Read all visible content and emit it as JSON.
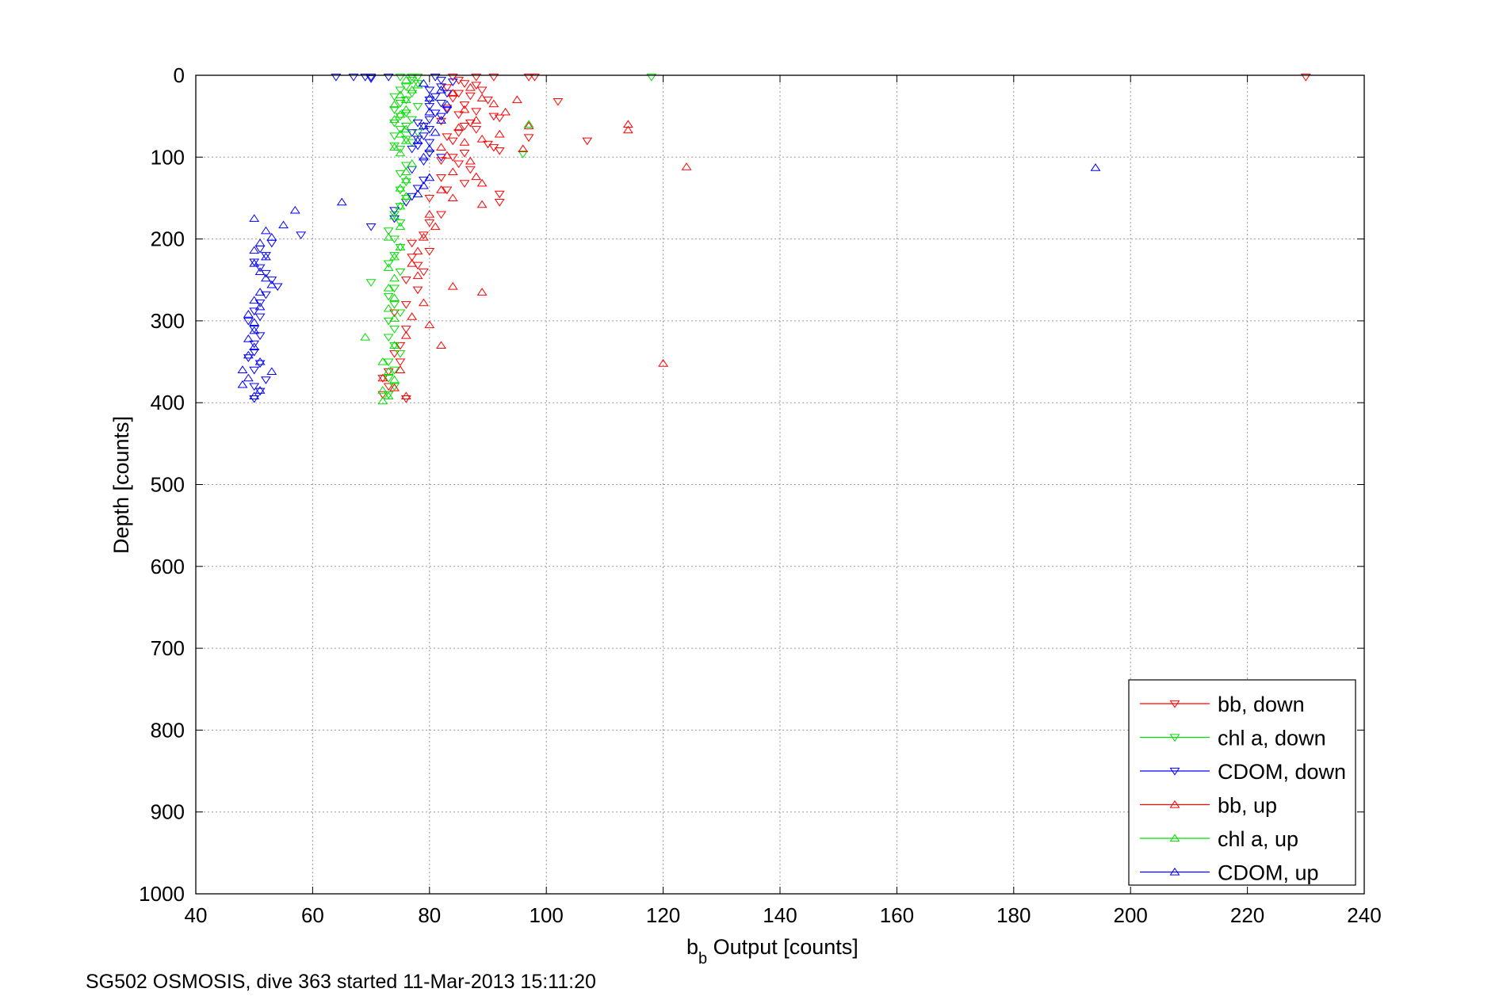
{
  "footer_text": "SG502 OSMOSIS, dive 363 started 11-Mar-2013 15:11:20",
  "chart_data": {
    "type": "scatter",
    "title": "",
    "xlabel_main": "b",
    "xlabel_sub": "b",
    "xlabel_rest": " Output [counts]",
    "ylabel": "Depth [counts]",
    "xlim": [
      40,
      240
    ],
    "ylim": [
      0,
      1000
    ],
    "y_reversed": true,
    "grid": true,
    "legend_position": "bottom-right",
    "x_ticks": [
      "40",
      "60",
      "80",
      "100",
      "120",
      "140",
      "160",
      "180",
      "200",
      "220",
      "240"
    ],
    "y_ticks": [
      "0",
      "100",
      "200",
      "300",
      "400",
      "500",
      "600",
      "700",
      "800",
      "900",
      "1000"
    ],
    "series": [
      {
        "name": "bb, down",
        "color": "#ff0000",
        "marker": "triangle-down",
        "points": [
          [
            84,
            2
          ],
          [
            88,
            2
          ],
          [
            91,
            2
          ],
          [
            97,
            2
          ],
          [
            98,
            2
          ],
          [
            230,
            2
          ],
          [
            85,
            6
          ],
          [
            86,
            10
          ],
          [
            88,
            12
          ],
          [
            83,
            15
          ],
          [
            89,
            18
          ],
          [
            85,
            22
          ],
          [
            87,
            25
          ],
          [
            84,
            28
          ],
          [
            90,
            30
          ],
          [
            102,
            32
          ],
          [
            86,
            36
          ],
          [
            83,
            40
          ],
          [
            88,
            44
          ],
          [
            85,
            48
          ],
          [
            91,
            50
          ],
          [
            92,
            52
          ],
          [
            82,
            56
          ],
          [
            87,
            58
          ],
          [
            86,
            62
          ],
          [
            88,
            66
          ],
          [
            85,
            70
          ],
          [
            83,
            75
          ],
          [
            97,
            76
          ],
          [
            84,
            80
          ],
          [
            107,
            80
          ],
          [
            90,
            84
          ],
          [
            91,
            88
          ],
          [
            92,
            92
          ],
          [
            86,
            95
          ],
          [
            84,
            100
          ],
          [
            82,
            104
          ],
          [
            85,
            108
          ],
          [
            87,
            115
          ],
          [
            82,
            125
          ],
          [
            86,
            132
          ],
          [
            83,
            140
          ],
          [
            92,
            145
          ],
          [
            80,
            150
          ],
          [
            92,
            155
          ],
          [
            82,
            170
          ],
          [
            80,
            180
          ],
          [
            79,
            195
          ],
          [
            77,
            205
          ],
          [
            80,
            215
          ],
          [
            77,
            222
          ],
          [
            78,
            232
          ],
          [
            79,
            240
          ],
          [
            76,
            250
          ],
          [
            78,
            262
          ],
          [
            76,
            280
          ],
          [
            74,
            290
          ],
          [
            76,
            310
          ],
          [
            75,
            330
          ],
          [
            74,
            340
          ],
          [
            75,
            350
          ],
          [
            73,
            362
          ],
          [
            72,
            370
          ],
          [
            73,
            380
          ],
          [
            72,
            390
          ],
          [
            76,
            395
          ]
        ]
      },
      {
        "name": "chl a, down",
        "color": "#00dd00",
        "marker": "triangle-down",
        "points": [
          [
            75,
            2
          ],
          [
            77,
            2
          ],
          [
            78,
            2
          ],
          [
            118,
            2
          ],
          [
            77,
            6
          ],
          [
            78,
            10
          ],
          [
            76,
            14
          ],
          [
            75,
            18
          ],
          [
            77,
            22
          ],
          [
            74,
            26
          ],
          [
            76,
            30
          ],
          [
            75,
            34
          ],
          [
            78,
            38
          ],
          [
            74,
            42
          ],
          [
            76,
            46
          ],
          [
            75,
            50
          ],
          [
            77,
            54
          ],
          [
            74,
            58
          ],
          [
            76,
            62
          ],
          [
            75,
            66
          ],
          [
            78,
            70
          ],
          [
            74,
            74
          ],
          [
            76,
            78
          ],
          [
            77,
            82
          ],
          [
            74,
            86
          ],
          [
            75,
            90
          ],
          [
            96,
            96
          ],
          [
            76,
            110
          ],
          [
            75,
            120
          ],
          [
            76,
            130
          ],
          [
            75,
            140
          ],
          [
            76,
            150
          ],
          [
            75,
            160
          ],
          [
            74,
            170
          ],
          [
            75,
            180
          ],
          [
            73,
            190
          ],
          [
            74,
            200
          ],
          [
            75,
            210
          ],
          [
            74,
            220
          ],
          [
            73,
            230
          ],
          [
            75,
            240
          ],
          [
            70,
            253
          ],
          [
            74,
            260
          ],
          [
            73,
            270
          ],
          [
            74,
            280
          ],
          [
            75,
            290
          ],
          [
            73,
            300
          ],
          [
            74,
            310
          ],
          [
            73,
            320
          ],
          [
            74,
            330
          ],
          [
            75,
            340
          ],
          [
            73,
            350
          ],
          [
            74,
            360
          ],
          [
            73,
            370
          ],
          [
            74,
            380
          ],
          [
            73,
            390
          ]
        ]
      },
      {
        "name": "CDOM, down",
        "color": "#0000ff",
        "marker": "triangle-down",
        "points": [
          [
            64,
            2
          ],
          [
            67,
            2
          ],
          [
            69,
            2
          ],
          [
            70,
            2
          ],
          [
            70,
            4
          ],
          [
            73,
            2
          ],
          [
            81,
            2
          ],
          [
            82,
            6
          ],
          [
            84,
            8
          ],
          [
            82,
            14
          ],
          [
            80,
            18
          ],
          [
            83,
            22
          ],
          [
            81,
            26
          ],
          [
            80,
            30
          ],
          [
            82,
            34
          ],
          [
            80,
            38
          ],
          [
            83,
            42
          ],
          [
            81,
            46
          ],
          [
            82,
            50
          ],
          [
            80,
            54
          ],
          [
            78,
            58
          ],
          [
            79,
            62
          ],
          [
            80,
            66
          ],
          [
            77,
            70
          ],
          [
            79,
            74
          ],
          [
            78,
            78
          ],
          [
            80,
            82
          ],
          [
            78,
            86
          ],
          [
            77,
            90
          ],
          [
            80,
            95
          ],
          [
            82,
            100
          ],
          [
            79,
            105
          ],
          [
            77,
            115
          ],
          [
            79,
            128
          ],
          [
            78,
            138
          ],
          [
            77,
            148
          ],
          [
            76,
            155
          ],
          [
            74,
            165
          ],
          [
            74,
            175
          ],
          [
            70,
            185
          ],
          [
            58,
            195
          ],
          [
            53,
            205
          ],
          [
            51,
            212
          ],
          [
            52,
            220
          ],
          [
            50,
            228
          ],
          [
            51,
            235
          ],
          [
            52,
            242
          ],
          [
            53,
            250
          ],
          [
            54,
            258
          ],
          [
            52,
            268
          ],
          [
            51,
            278
          ],
          [
            50,
            288
          ],
          [
            51,
            295
          ],
          [
            49,
            300
          ],
          [
            50,
            310
          ],
          [
            51,
            318
          ],
          [
            50,
            328
          ],
          [
            50,
            338
          ],
          [
            49,
            345
          ],
          [
            51,
            352
          ],
          [
            50,
            360
          ],
          [
            52,
            372
          ],
          [
            50,
            380
          ],
          [
            51,
            386
          ],
          [
            50,
            395
          ]
        ]
      },
      {
        "name": "bb, up",
        "color": "#ff0000",
        "marker": "triangle-up",
        "points": [
          [
            87,
            15
          ],
          [
            84,
            22
          ],
          [
            89,
            28
          ],
          [
            91,
            35
          ],
          [
            95,
            30
          ],
          [
            86,
            42
          ],
          [
            93,
            45
          ],
          [
            88,
            55
          ],
          [
            114,
            60
          ],
          [
            97,
            62
          ],
          [
            85,
            64
          ],
          [
            114,
            67
          ],
          [
            92,
            72
          ],
          [
            89,
            78
          ],
          [
            86,
            82
          ],
          [
            82,
            88
          ],
          [
            96,
            90
          ],
          [
            83,
            98
          ],
          [
            87,
            105
          ],
          [
            124,
            112
          ],
          [
            84,
            118
          ],
          [
            88,
            124
          ],
          [
            89,
            132
          ],
          [
            82,
            140
          ],
          [
            84,
            150
          ],
          [
            89,
            158
          ],
          [
            80,
            170
          ],
          [
            81,
            185
          ],
          [
            79,
            198
          ],
          [
            78,
            215
          ],
          [
            77,
            230
          ],
          [
            78,
            245
          ],
          [
            84,
            258
          ],
          [
            89,
            265
          ],
          [
            79,
            278
          ],
          [
            77,
            295
          ],
          [
            80,
            305
          ],
          [
            76,
            318
          ],
          [
            82,
            330
          ],
          [
            120,
            352
          ],
          [
            75,
            360
          ],
          [
            72,
            370
          ],
          [
            74,
            382
          ],
          [
            76,
            392
          ]
        ]
      },
      {
        "name": "chl a, up",
        "color": "#00dd00",
        "marker": "triangle-up",
        "points": [
          [
            76,
            6
          ],
          [
            78,
            12
          ],
          [
            77,
            18
          ],
          [
            75,
            24
          ],
          [
            76,
            30
          ],
          [
            74,
            36
          ],
          [
            76,
            42
          ],
          [
            75,
            48
          ],
          [
            74,
            54
          ],
          [
            97,
            60
          ],
          [
            76,
            66
          ],
          [
            75,
            72
          ],
          [
            76,
            80
          ],
          [
            74,
            88
          ],
          [
            75,
            95
          ],
          [
            77,
            108
          ],
          [
            76,
            118
          ],
          [
            76,
            128
          ],
          [
            75,
            138
          ],
          [
            76,
            148
          ],
          [
            75,
            160
          ],
          [
            74,
            172
          ],
          [
            75,
            185
          ],
          [
            73,
            198
          ],
          [
            75,
            210
          ],
          [
            74,
            222
          ],
          [
            73,
            235
          ],
          [
            74,
            248
          ],
          [
            73,
            260
          ],
          [
            74,
            272
          ],
          [
            73,
            285
          ],
          [
            74,
            297
          ],
          [
            69,
            320
          ],
          [
            74,
            330
          ],
          [
            72,
            350
          ],
          [
            73,
            362
          ],
          [
            74,
            372
          ],
          [
            72,
            385
          ],
          [
            73,
            392
          ],
          [
            72,
            398
          ]
        ]
      },
      {
        "name": "CDOM, up",
        "color": "#0000ff",
        "marker": "triangle-up",
        "points": [
          [
            79,
            10
          ],
          [
            82,
            18
          ],
          [
            80,
            28
          ],
          [
            83,
            36
          ],
          [
            80,
            45
          ],
          [
            82,
            55
          ],
          [
            79,
            62
          ],
          [
            81,
            70
          ],
          [
            78,
            80
          ],
          [
            80,
            90
          ],
          [
            79,
            100
          ],
          [
            194,
            113
          ],
          [
            80,
            125
          ],
          [
            79,
            135
          ],
          [
            78,
            145
          ],
          [
            65,
            155
          ],
          [
            57,
            165
          ],
          [
            50,
            175
          ],
          [
            55,
            183
          ],
          [
            52,
            190
          ],
          [
            53,
            198
          ],
          [
            51,
            205
          ],
          [
            50,
            214
          ],
          [
            52,
            222
          ],
          [
            50,
            230
          ],
          [
            51,
            240
          ],
          [
            52,
            248
          ],
          [
            53,
            256
          ],
          [
            51,
            265
          ],
          [
            50,
            275
          ],
          [
            51,
            283
          ],
          [
            49,
            292
          ],
          [
            50,
            302
          ],
          [
            50,
            312
          ],
          [
            49,
            322
          ],
          [
            50,
            332
          ],
          [
            49,
            342
          ],
          [
            51,
            350
          ],
          [
            48,
            360
          ],
          [
            53,
            362
          ],
          [
            49,
            370
          ],
          [
            48,
            378
          ],
          [
            51,
            385
          ],
          [
            50,
            392
          ]
        ]
      }
    ]
  }
}
